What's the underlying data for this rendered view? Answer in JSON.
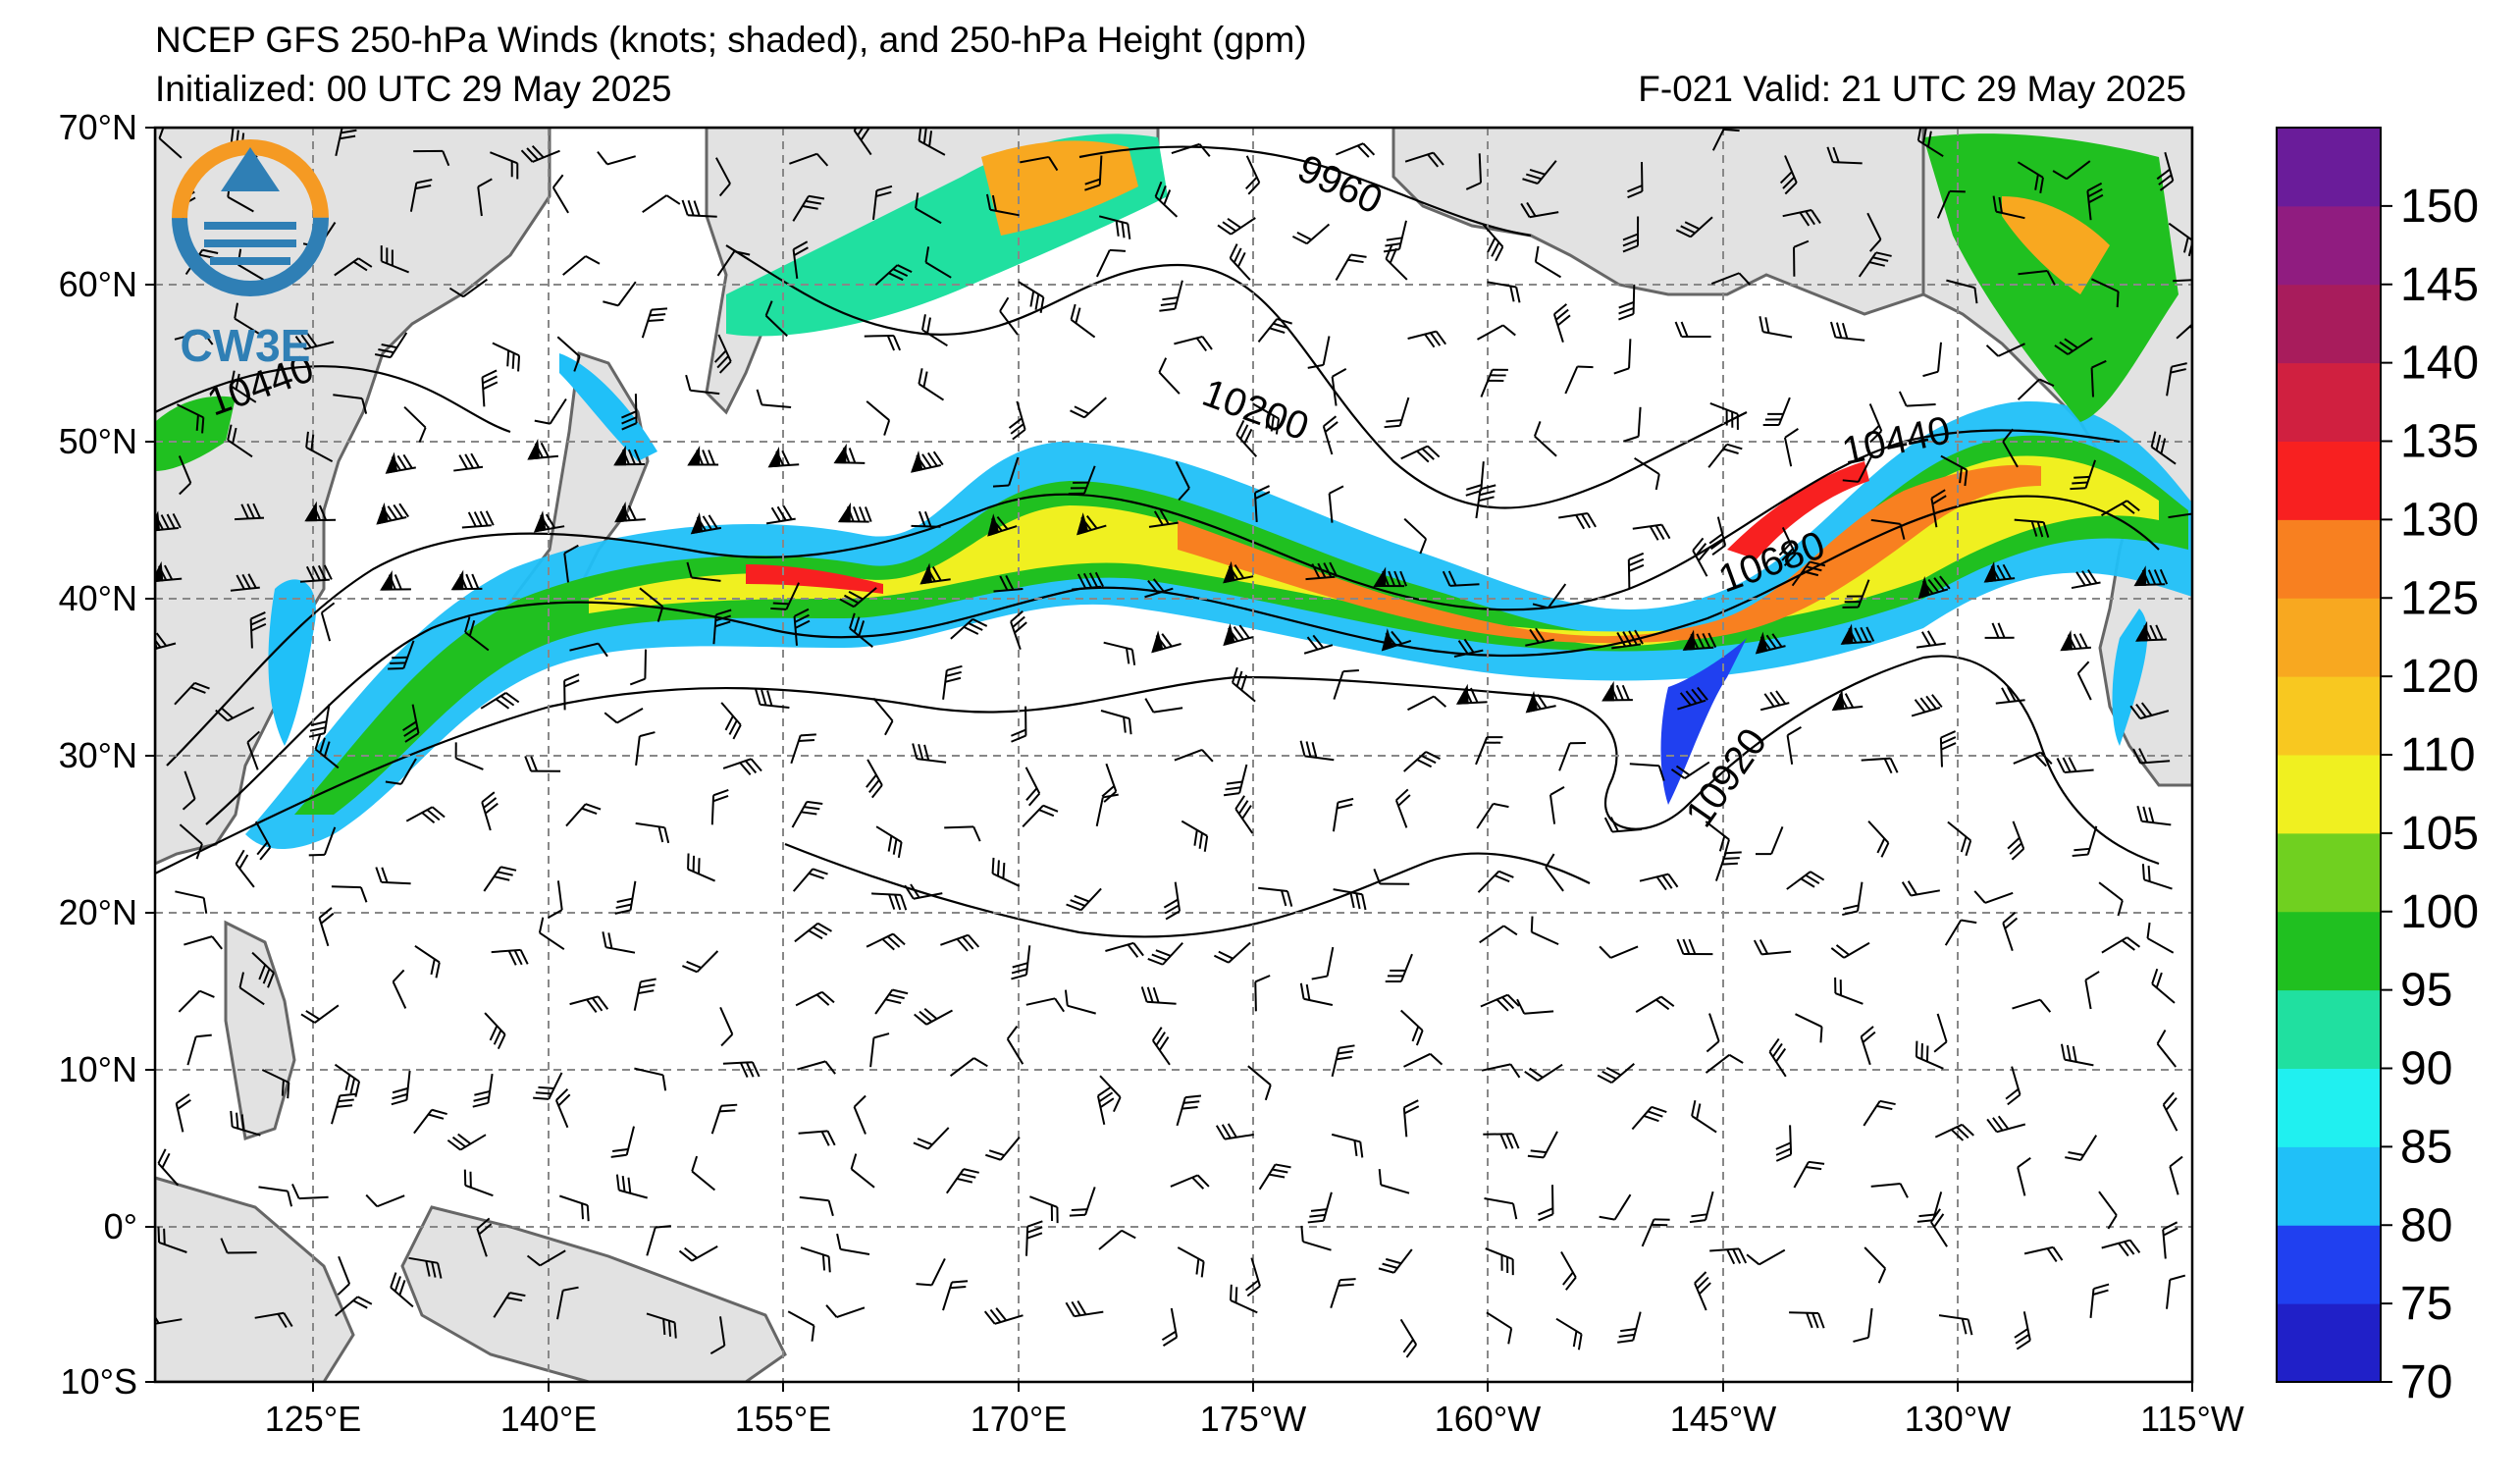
{
  "header": {
    "title": "NCEP GFS 250-hPa Winds (knots; shaded), and 250-hPa Height (gpm)",
    "initialized": "Initialized: 00 UTC 29 May 2025",
    "valid": "F-021  Valid: 21 UTC 29 May 2025"
  },
  "logo": {
    "text": "CW3E",
    "icon": "cw3e-logo-icon"
  },
  "map": {
    "projection": "cylindrical",
    "lon_range": [
      115,
      245
    ],
    "lat_range": [
      -10,
      70
    ],
    "lat_ticks": [
      "70°N",
      "60°N",
      "50°N",
      "40°N",
      "30°N",
      "20°N",
      "10°N",
      "0°",
      "10°S"
    ],
    "lon_ticks": [
      "125°E",
      "140°E",
      "155°E",
      "170°E",
      "175°W",
      "160°W",
      "145°W",
      "130°W",
      "115°W"
    ],
    "land_color": "#e2e2e2",
    "coast_color": "#666666",
    "grid_color": "#888888"
  },
  "contours": {
    "variable": "250-hPa Height (gpm)",
    "labels": [
      "9960",
      "10200",
      "10440",
      "10440",
      "10680",
      "10920"
    ]
  },
  "colorbar": {
    "units": "knots",
    "ticks": [
      "70",
      "75",
      "80",
      "85",
      "90",
      "95",
      "100",
      "105",
      "110",
      "120",
      "125",
      "130",
      "135",
      "140",
      "145",
      "150"
    ],
    "colors": [
      "#2020c8",
      "#2040f0",
      "#20c0f8",
      "#20f0f0",
      "#20e0a0",
      "#20c020",
      "#70d020",
      "#f0f020",
      "#f8c820",
      "#f8a820",
      "#f88020",
      "#f82020",
      "#d02040",
      "#a81c5c",
      "#901c80",
      "#6a1c9a"
    ]
  }
}
